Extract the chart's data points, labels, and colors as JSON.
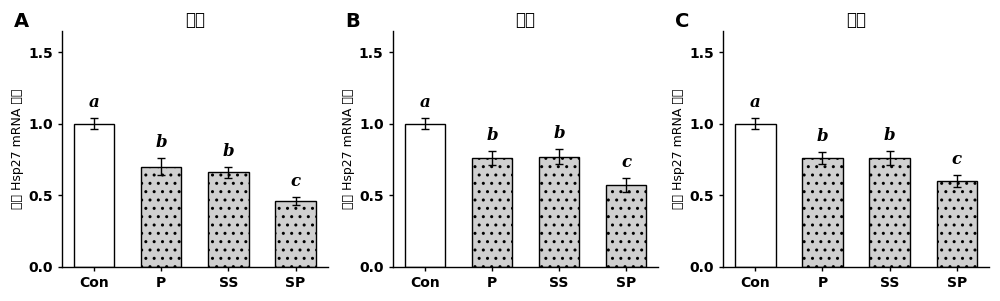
{
  "panels": [
    {
      "label": "A",
      "title": "肝脏",
      "categories": [
        "Con",
        "P",
        "SS",
        "SP"
      ],
      "values": [
        1.0,
        0.7,
        0.66,
        0.46
      ],
      "errors": [
        0.04,
        0.06,
        0.04,
        0.03
      ],
      "sig_labels": [
        "a",
        "b",
        "b",
        "c"
      ],
      "bar_colors": [
        "#ffffff",
        "#d0d0d0",
        "#d0d0d0",
        "#d0d0d0"
      ],
      "bar_hatches": [
        null,
        "..",
        "..",
        ".."
      ]
    },
    {
      "label": "B",
      "title": "肾脏",
      "categories": [
        "Con",
        "P",
        "SS",
        "SP"
      ],
      "values": [
        1.0,
        0.76,
        0.77,
        0.57
      ],
      "errors": [
        0.04,
        0.05,
        0.05,
        0.05
      ],
      "sig_labels": [
        "a",
        "b",
        "b",
        "c"
      ],
      "bar_colors": [
        "#ffffff",
        "#d0d0d0",
        "#d0d0d0",
        "#d0d0d0"
      ],
      "bar_hatches": [
        null,
        "..",
        "..",
        ".."
      ]
    },
    {
      "label": "C",
      "title": "脾脏",
      "categories": [
        "Con",
        "P",
        "SS",
        "SP"
      ],
      "values": [
        1.0,
        0.76,
        0.76,
        0.6
      ],
      "errors": [
        0.04,
        0.04,
        0.05,
        0.04
      ],
      "sig_labels": [
        "a",
        "b",
        "b",
        "c"
      ],
      "bar_colors": [
        "#ffffff",
        "#d0d0d0",
        "#d0d0d0",
        "#d0d0d0"
      ],
      "bar_hatches": [
        null,
        "..",
        "..",
        ".."
      ]
    }
  ],
  "ylabel": "相对 Hsp27 mRNA 水平",
  "ylim": [
    0,
    1.65
  ],
  "yticks": [
    0.0,
    0.5,
    1.0,
    1.5
  ],
  "background_color": "#ffffff",
  "bar_width": 0.6,
  "title_fontsize": 12,
  "tick_fontsize": 10,
  "sig_fontsize": 12,
  "ylabel_fontsize": 9
}
